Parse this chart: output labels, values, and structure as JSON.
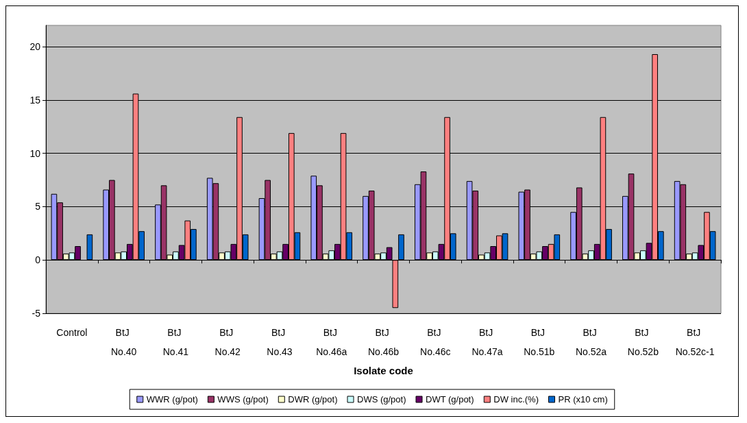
{
  "chart_data": {
    "type": "bar",
    "xlabel": "Isolate code",
    "categories": [
      "Control",
      "BtJ No.40",
      "BtJ No.41",
      "BtJ No.42",
      "BtJ No.43",
      "BtJ No.46a",
      "BtJ No.46b",
      "BtJ No.46c",
      "BtJ No.47a",
      "BtJ No.51b",
      "BtJ No.52a",
      "BtJ No.52b",
      "BtJ No.52c-1"
    ],
    "series": [
      {
        "name": "WWR (g/pot)",
        "color": "#9999ff",
        "values": [
          6.2,
          6.6,
          5.2,
          7.7,
          5.8,
          7.9,
          6.0,
          7.1,
          7.4,
          6.4,
          4.5,
          6.0,
          7.4
        ]
      },
      {
        "name": "WWS (g/pot)",
        "color": "#993366",
        "values": [
          5.4,
          7.5,
          7.0,
          7.2,
          7.5,
          7.0,
          6.5,
          8.3,
          6.5,
          6.6,
          6.8,
          8.1,
          7.1
        ]
      },
      {
        "name": "DWR (g/pot)",
        "color": "#ffffcc",
        "values": [
          0.6,
          0.7,
          0.5,
          0.7,
          0.6,
          0.6,
          0.6,
          0.7,
          0.5,
          0.6,
          0.6,
          0.7,
          0.6
        ]
      },
      {
        "name": "DWS (g/pot)",
        "color": "#ccffff",
        "values": [
          0.7,
          0.8,
          0.8,
          0.8,
          0.8,
          0.9,
          0.7,
          0.8,
          0.7,
          0.8,
          0.9,
          0.9,
          0.7
        ]
      },
      {
        "name": "DWT (g/pot)",
        "color": "#660066",
        "values": [
          1.3,
          1.5,
          1.4,
          1.5,
          1.5,
          1.5,
          1.2,
          1.5,
          1.3,
          1.3,
          1.5,
          1.6,
          1.4
        ]
      },
      {
        "name": "DW inc.(%)",
        "color": "#ff8080",
        "values": [
          null,
          15.6,
          3.7,
          13.4,
          11.9,
          11.9,
          -4.5,
          13.4,
          2.3,
          1.5,
          13.4,
          19.3,
          4.5
        ]
      },
      {
        "name": "PR (x10 cm)",
        "color": "#0066cc",
        "values": [
          2.4,
          2.7,
          2.9,
          2.4,
          2.6,
          2.6,
          2.4,
          2.5,
          2.5,
          2.4,
          2.9,
          2.7,
          2.7
        ]
      }
    ],
    "ylim": [
      -5,
      22
    ],
    "yticks": [
      -5,
      0,
      5,
      10,
      15,
      20
    ],
    "grid": "y",
    "legend": "bottom"
  }
}
